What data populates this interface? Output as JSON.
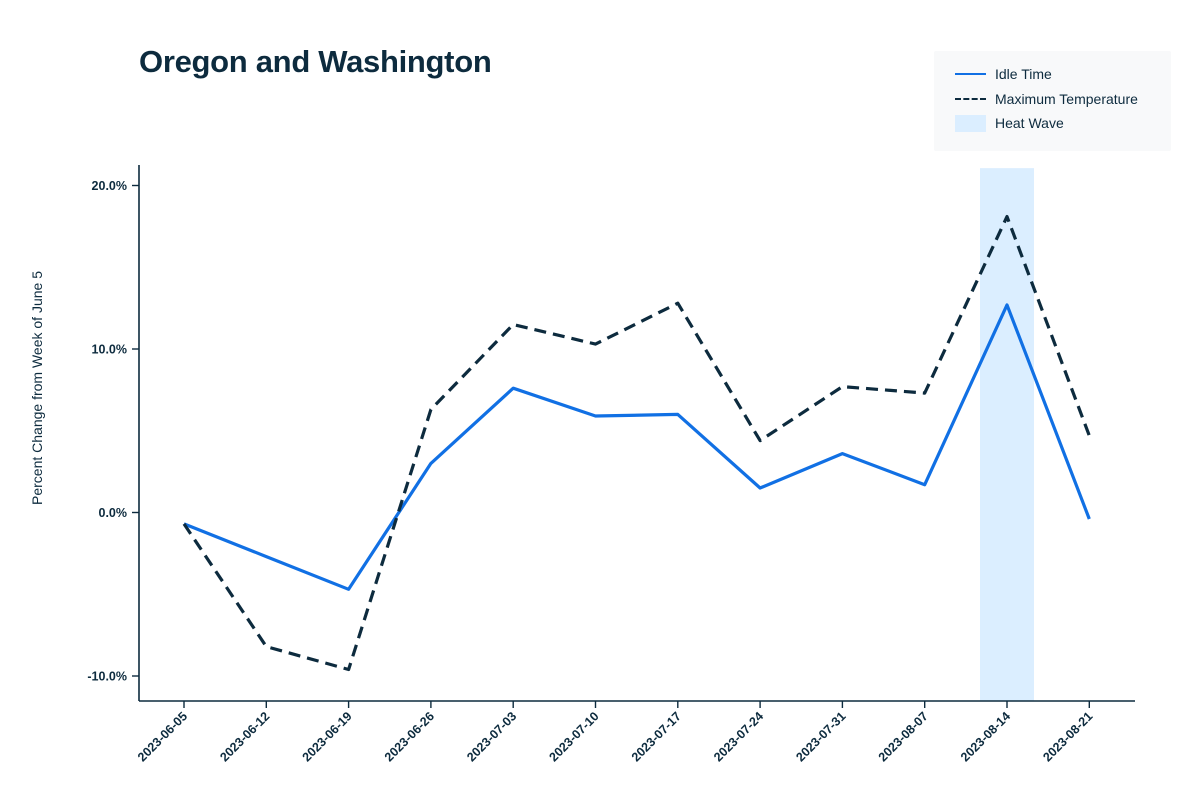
{
  "chart_data": {
    "type": "line",
    "title": "Oregon and Washington",
    "ylabel": "Percent Change from Week of June 5",
    "xlabel": "",
    "x": [
      "2023-06-05",
      "2023-06-12",
      "2023-06-19",
      "2023-06-26",
      "2023-07-03",
      "2023-07-10",
      "2023-07-17",
      "2023-07-24",
      "2023-07-31",
      "2023-08-07",
      "2023-08-14",
      "2023-08-21"
    ],
    "series": [
      {
        "name": "Idle Time",
        "style": "solid",
        "color": "#1170e4",
        "values": [
          -0.7,
          -2.7,
          -4.7,
          3.0,
          7.6,
          5.9,
          6.0,
          1.5,
          3.6,
          1.7,
          12.7,
          -0.4
        ]
      },
      {
        "name": "Maximum Temperature",
        "style": "dashed",
        "color": "#0d2b3e",
        "values": [
          -0.7,
          -8.2,
          -9.6,
          6.3,
          11.5,
          10.3,
          12.8,
          4.4,
          7.7,
          7.3,
          18.1,
          4.7
        ]
      }
    ],
    "shaded_regions": [
      {
        "name": "Heat Wave",
        "x_center": "2023-08-14",
        "color": "#dbeeff"
      }
    ],
    "yticks": [
      -10,
      0,
      10,
      20
    ],
    "ytick_labels": [
      "-10.0%",
      "0.0%",
      "10.0%",
      "20.0%"
    ],
    "ylim": [
      -11.5,
      21
    ],
    "grid": false,
    "legend_position": "top-right"
  }
}
